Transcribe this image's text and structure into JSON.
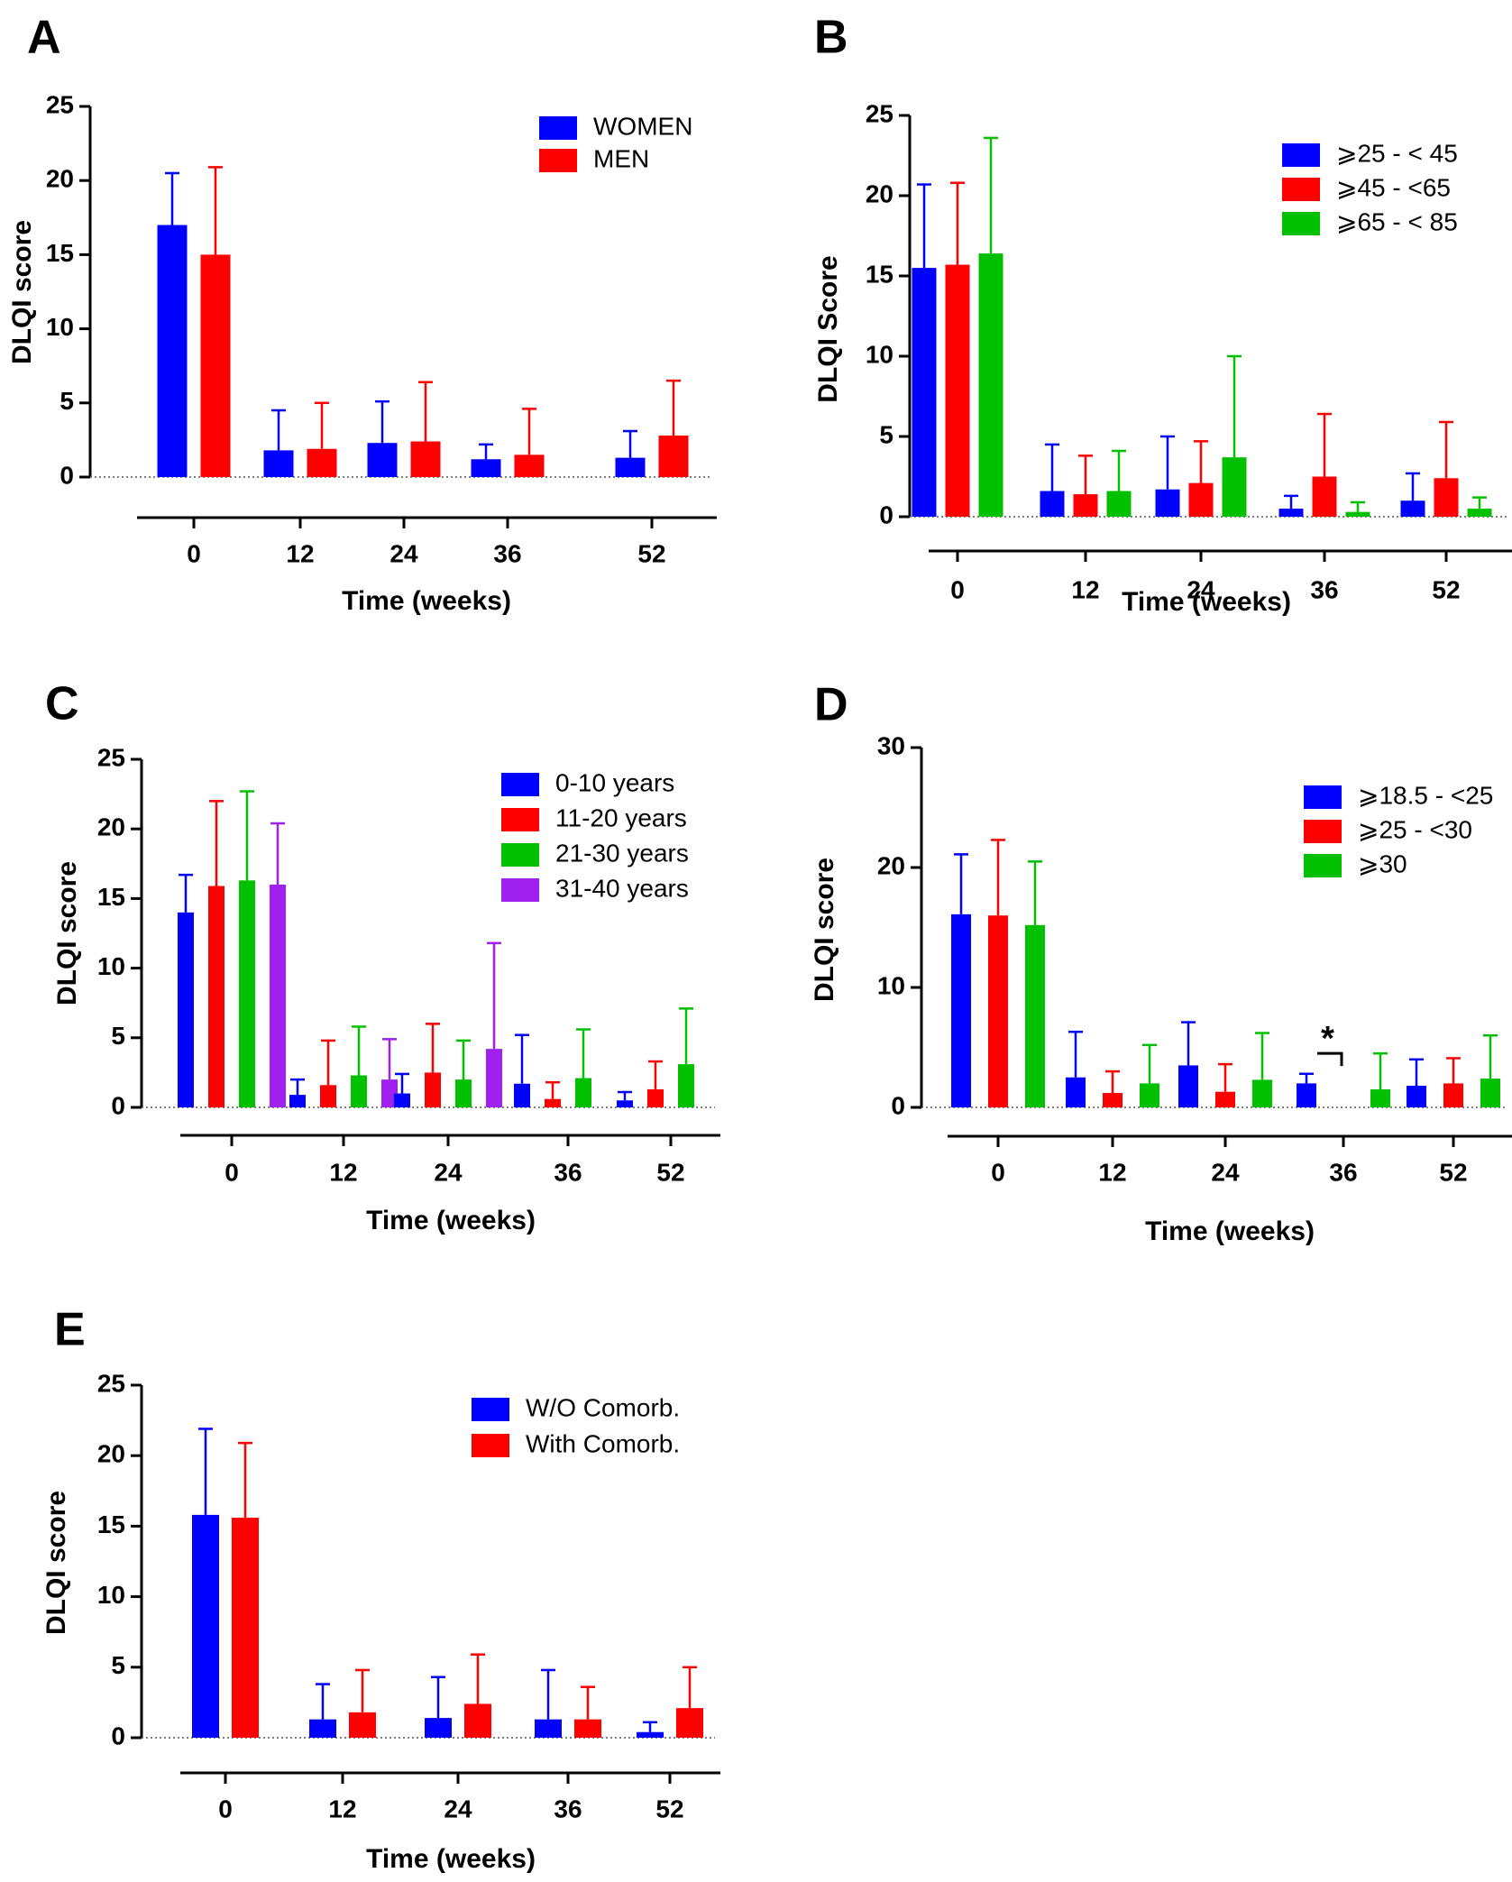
{
  "figure": {
    "description_free": true
  },
  "colors": {
    "blue": "#0000ff",
    "red": "#ff0000",
    "green": "#00c000",
    "purple": "#a020f0",
    "axis": "#000000"
  },
  "chart_data": [
    {
      "panel": "A",
      "type": "bar",
      "title": "",
      "xlabel": "Time (weeks)",
      "ylabel": "DLQI score",
      "categories": [
        "0",
        "12",
        "24",
        "36",
        "52"
      ],
      "ylim": [
        0,
        25
      ],
      "yticks": [
        0,
        5,
        10,
        15,
        20,
        25
      ],
      "legend_position": "top-right",
      "series": [
        {
          "name": "WOMEN",
          "color": "blue",
          "values": [
            17.0,
            1.8,
            2.3,
            1.2,
            1.3
          ],
          "errors": [
            3.5,
            2.7,
            2.8,
            1.0,
            1.8
          ]
        },
        {
          "name": "MEN",
          "color": "red",
          "values": [
            15.0,
            1.9,
            2.4,
            1.5,
            2.8
          ],
          "errors": [
            5.9,
            3.1,
            4.0,
            3.1,
            3.7
          ]
        }
      ],
      "annotations": []
    },
    {
      "panel": "B",
      "type": "bar",
      "title": "",
      "xlabel": "Time (weeks)",
      "ylabel": "DLQI Score",
      "categories": [
        "0",
        "12",
        "24",
        "36",
        "52"
      ],
      "ylim": [
        0,
        25
      ],
      "yticks": [
        0,
        5,
        10,
        15,
        20,
        25
      ],
      "legend_position": "top-right",
      "series": [
        {
          "name": "⩾25 - < 45",
          "color": "blue",
          "values": [
            15.5,
            1.6,
            1.7,
            0.5,
            1.0
          ],
          "errors": [
            5.2,
            2.9,
            3.3,
            0.8,
            1.7
          ]
        },
        {
          "name": "⩾45 - <65",
          "color": "red",
          "values": [
            15.7,
            1.4,
            2.1,
            2.5,
            2.4
          ],
          "errors": [
            5.1,
            2.4,
            2.6,
            3.9,
            3.5
          ]
        },
        {
          "name": "⩾65 - < 85",
          "color": "green",
          "values": [
            16.4,
            1.6,
            3.7,
            0.3,
            0.5
          ],
          "errors": [
            7.2,
            2.5,
            6.3,
            0.6,
            0.7
          ]
        }
      ],
      "annotations": []
    },
    {
      "panel": "C",
      "type": "bar",
      "title": "",
      "xlabel": "Time (weeks)",
      "ylabel": "DLQI score",
      "categories": [
        "0",
        "12",
        "24",
        "36",
        "52"
      ],
      "ylim": [
        0,
        25
      ],
      "yticks": [
        0,
        5,
        10,
        15,
        20,
        25
      ],
      "legend_position": "top-right",
      "series": [
        {
          "name": "0-10 years",
          "color": "blue",
          "values": [
            14.0,
            0.9,
            1.0,
            1.7,
            0.5
          ],
          "errors": [
            2.7,
            1.1,
            1.4,
            3.5,
            0.6
          ]
        },
        {
          "name": "11-20 years",
          "color": "red",
          "values": [
            15.9,
            1.6,
            2.5,
            0.6,
            1.3
          ],
          "errors": [
            6.1,
            3.2,
            3.5,
            1.2,
            2.0
          ]
        },
        {
          "name": "21-30 years",
          "color": "green",
          "values": [
            16.3,
            2.3,
            2.0,
            2.1,
            3.1
          ],
          "errors": [
            6.4,
            3.5,
            2.8,
            3.5,
            4.0
          ]
        },
        {
          "name": "31-40 years",
          "color": "purple",
          "values": [
            16.0,
            2.0,
            4.2,
            null,
            null
          ],
          "errors": [
            4.4,
            2.9,
            7.6,
            null,
            null
          ]
        }
      ],
      "annotations": []
    },
    {
      "panel": "D",
      "type": "bar",
      "title": "",
      "xlabel": "Time (weeks)",
      "ylabel": "DLQI score",
      "categories": [
        "0",
        "12",
        "24",
        "36",
        "52"
      ],
      "ylim": [
        0,
        30
      ],
      "yticks": [
        0,
        10,
        20,
        30
      ],
      "legend_position": "top-right",
      "series": [
        {
          "name": "⩾18.5 - <25",
          "color": "blue",
          "values": [
            16.1,
            2.5,
            3.5,
            2.0,
            1.8
          ],
          "errors": [
            5.0,
            3.8,
            3.6,
            0.8,
            2.2
          ]
        },
        {
          "name": "⩾25 - <30",
          "color": "red",
          "values": [
            16.0,
            1.2,
            1.3,
            0.0,
            2.0
          ],
          "errors": [
            6.3,
            1.8,
            2.3,
            0.0,
            2.1
          ]
        },
        {
          "name": "⩾30",
          "color": "green",
          "values": [
            15.2,
            2.0,
            2.3,
            1.5,
            2.4
          ],
          "errors": [
            5.3,
            3.2,
            3.9,
            3.0,
            3.6
          ]
        }
      ],
      "annotations": [
        {
          "text": "*",
          "category": "36"
        }
      ]
    },
    {
      "panel": "E",
      "type": "bar",
      "title": "",
      "xlabel": "Time (weeks)",
      "ylabel": "DLQI score",
      "categories": [
        "0",
        "12",
        "24",
        "36",
        "52"
      ],
      "ylim": [
        0,
        25
      ],
      "yticks": [
        0,
        5,
        10,
        15,
        20,
        25
      ],
      "legend_position": "top-right",
      "series": [
        {
          "name": "W/O Comorb.",
          "color": "blue",
          "values": [
            15.8,
            1.3,
            1.4,
            1.3,
            0.4
          ],
          "errors": [
            6.1,
            2.5,
            2.9,
            3.5,
            0.7
          ]
        },
        {
          "name": "With Comorb.",
          "color": "red",
          "values": [
            15.6,
            1.8,
            2.4,
            1.3,
            2.1
          ],
          "errors": [
            5.3,
            3.0,
            3.5,
            2.3,
            2.9
          ]
        }
      ],
      "annotations": []
    }
  ]
}
